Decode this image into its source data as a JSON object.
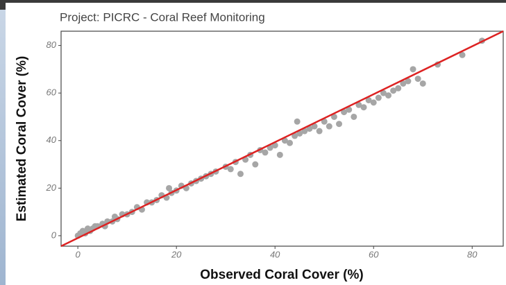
{
  "chart_data": {
    "type": "scatter",
    "title": "Project: PICRC - Coral Reef Monitoring",
    "xlabel": "Observed Coral Cover (%)",
    "ylabel": "Estimated Coral Cover (%)",
    "xlim": [
      -3.4,
      86.3
    ],
    "ylim": [
      -4.4,
      86
    ],
    "xticks": [
      0,
      20,
      40,
      60,
      80
    ],
    "yticks": [
      0,
      20,
      40,
      60,
      80
    ],
    "series": [
      {
        "color": "#a6a6a6",
        "x": [
          0,
          0.5,
          1,
          1.5,
          2,
          2.5,
          3,
          3.5,
          4,
          5,
          5.5,
          6,
          7,
          7.5,
          8,
          9,
          10,
          11,
          12,
          13,
          14,
          15,
          16,
          17,
          18,
          18.5,
          19,
          20,
          21,
          22,
          23,
          24,
          25,
          26,
          27,
          28,
          30,
          31,
          32,
          33,
          34,
          35,
          36,
          37,
          38,
          39,
          40,
          41,
          42,
          43,
          44,
          44.5,
          45,
          46,
          47,
          48,
          49,
          50,
          51,
          52,
          53,
          54,
          55,
          56,
          57,
          58,
          59,
          60,
          61,
          62,
          63,
          64,
          65,
          66,
          67,
          68,
          69,
          70,
          73,
          78,
          82
        ],
        "values": [
          0,
          1,
          2,
          1,
          3,
          2,
          3,
          4,
          4,
          5,
          4,
          6,
          6,
          8,
          7,
          9,
          9,
          10,
          12,
          11,
          14,
          14,
          15,
          17,
          16,
          20,
          18,
          19,
          21,
          20,
          22,
          23,
          24,
          25,
          26,
          27,
          29,
          28,
          31,
          26,
          32,
          34,
          30,
          36,
          35,
          37,
          38,
          34,
          40,
          39,
          42,
          48,
          43,
          44,
          45,
          46,
          44,
          48,
          46,
          50,
          47,
          52,
          53,
          50,
          55,
          54,
          57,
          56,
          58,
          60,
          59,
          61,
          62,
          64,
          65,
          70,
          66,
          64,
          72,
          76,
          82
        ]
      },
      {
        "color": "#dd2222",
        "line": true,
        "x": [
          -3.4,
          86.3
        ],
        "values": [
          -4.4,
          86
        ]
      }
    ]
  }
}
